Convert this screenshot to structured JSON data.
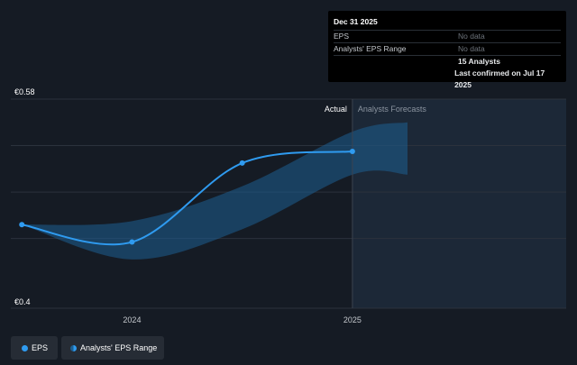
{
  "colors": {
    "background": "#151b24",
    "eps_line": "#2f9bf0",
    "range_fill": "#1d5f91",
    "forecast_bg": "#1d2a3a",
    "grid": "#2b323c"
  },
  "tooltip": {
    "date": "Dec 31 2025",
    "rows": [
      {
        "label": "EPS",
        "value": "No data"
      },
      {
        "label": "Analysts' EPS Range",
        "value": "No data"
      },
      {
        "label": "",
        "value": "15 Analysts"
      },
      {
        "label": "",
        "value": "Last confirmed on Jul 17 2025"
      }
    ]
  },
  "legend": {
    "eps_label": "EPS",
    "range_label": "Analysts' EPS Range"
  },
  "chart_data": {
    "type": "line",
    "title": "",
    "y_top_label": "€0.58",
    "y_bottom_label": "€0.4",
    "ylim": [
      0.4,
      0.58
    ],
    "xlim": [
      2023.45,
      2025.97
    ],
    "x_ticks": [
      {
        "value": 2024.0,
        "label": "2024"
      },
      {
        "value": 2025.0,
        "label": "2025"
      }
    ],
    "actual_label": "Actual",
    "forecast_label": "Analysts Forecasts",
    "actual_end": 2025.0,
    "forecast_end": 2025.25,
    "series": [
      {
        "name": "EPS",
        "points": [
          {
            "x": 2023.5,
            "y": 0.472
          },
          {
            "x": 2024.0,
            "y": 0.457
          },
          {
            "x": 2024.5,
            "y": 0.525
          },
          {
            "x": 2025.0,
            "y": 0.535
          }
        ]
      }
    ],
    "range": {
      "name": "Analysts' EPS Range",
      "x": [
        2023.5,
        2024.0,
        2024.5,
        2025.0,
        2025.25
      ],
      "low": [
        0.472,
        0.442,
        0.468,
        0.515,
        0.515
      ],
      "high": [
        0.472,
        0.475,
        0.505,
        0.552,
        0.56
      ]
    }
  }
}
